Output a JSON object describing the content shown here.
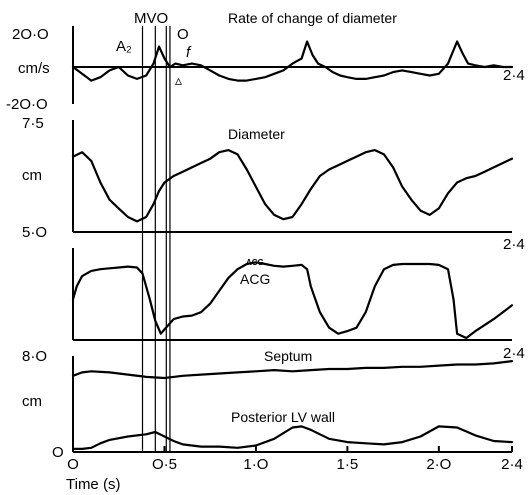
{
  "chart_data": {
    "type": "line",
    "x_axis": {
      "label": "Time (s)",
      "range": [
        0,
        2.4
      ],
      "ticks": [
        {
          "value": 0,
          "label": "O"
        },
        {
          "value": 0.5,
          "label": "O·5"
        },
        {
          "value": 1.0,
          "label": "1·O"
        },
        {
          "value": 1.5,
          "label": "1·5"
        },
        {
          "value": 2.0,
          "label": "2·O"
        },
        {
          "value": 2.4,
          "label": "2·4"
        }
      ],
      "panel_end_label": "2·4"
    },
    "markers": {
      "mvo_label": "MVO",
      "o_label": "O",
      "a2_label": "A₂",
      "f_label": "f",
      "triangle_label": "▵",
      "lines": [
        {
          "name": "a2",
          "x": 0.38
        },
        {
          "name": "mvo",
          "x": 0.45
        },
        {
          "name": "o",
          "x": 0.51
        },
        {
          "name": "f",
          "x": 0.53
        }
      ]
    },
    "panels": [
      {
        "id": "rate",
        "title": "Rate of change of diameter",
        "unit": "cm/s",
        "ylim": [
          -20,
          20
        ],
        "y_ticks": [
          {
            "value": 20,
            "label": "2O·O"
          },
          {
            "value": -20,
            "label": "-2O·O"
          }
        ],
        "baseline": 0,
        "series": {
          "x": [
            0,
            0.05,
            0.1,
            0.15,
            0.2,
            0.25,
            0.3,
            0.35,
            0.4,
            0.44,
            0.47,
            0.5,
            0.53,
            0.56,
            0.6,
            0.65,
            0.7,
            0.75,
            0.8,
            0.85,
            0.9,
            0.95,
            1.0,
            1.05,
            1.1,
            1.15,
            1.2,
            1.25,
            1.28,
            1.31,
            1.34,
            1.38,
            1.42,
            1.46,
            1.5,
            1.55,
            1.6,
            1.65,
            1.7,
            1.75,
            1.8,
            1.85,
            1.9,
            1.95,
            2.0,
            2.05,
            2.1,
            2.13,
            2.16,
            2.2,
            2.25,
            2.3,
            2.35,
            2.4
          ],
          "y": [
            0,
            -4,
            -8,
            -6,
            -2,
            0,
            -5,
            -7,
            -5,
            2,
            12,
            5,
            0,
            2,
            1,
            2,
            1,
            -2,
            -5,
            -7,
            -8,
            -8,
            -7,
            -6,
            -4,
            -2,
            2,
            5,
            15,
            7,
            2,
            0,
            -3,
            -5,
            -6,
            -7,
            -7,
            -6,
            -5,
            -3,
            -2,
            -3,
            -4,
            -5,
            -4,
            2,
            15,
            8,
            2,
            1,
            0,
            1,
            0,
            0
          ]
        }
      },
      {
        "id": "diameter",
        "title": "Diameter",
        "unit": "cm",
        "ylim": [
          5,
          7.5
        ],
        "y_ticks": [
          {
            "value": 7.5,
            "label": "7·5"
          },
          {
            "value": 5,
            "label": "5·O"
          }
        ],
        "series": {
          "x": [
            0,
            0.05,
            0.1,
            0.15,
            0.2,
            0.25,
            0.3,
            0.35,
            0.4,
            0.44,
            0.47,
            0.5,
            0.55,
            0.6,
            0.65,
            0.7,
            0.75,
            0.8,
            0.85,
            0.9,
            0.95,
            1.0,
            1.05,
            1.1,
            1.15,
            1.2,
            1.25,
            1.3,
            1.35,
            1.4,
            1.45,
            1.5,
            1.55,
            1.6,
            1.65,
            1.7,
            1.75,
            1.8,
            1.85,
            1.9,
            1.95,
            2.0,
            2.05,
            2.1,
            2.15,
            2.2,
            2.25,
            2.3,
            2.35,
            2.4
          ],
          "y": [
            6.7,
            6.8,
            6.6,
            6.1,
            5.7,
            5.5,
            5.3,
            5.2,
            5.3,
            5.6,
            5.9,
            6.1,
            6.25,
            6.35,
            6.45,
            6.55,
            6.65,
            6.8,
            6.85,
            6.75,
            6.4,
            6.0,
            5.6,
            5.35,
            5.25,
            5.3,
            5.6,
            5.95,
            6.25,
            6.4,
            6.5,
            6.6,
            6.7,
            6.8,
            6.85,
            6.75,
            6.45,
            6.0,
            5.7,
            5.45,
            5.35,
            5.5,
            5.85,
            6.1,
            6.2,
            6.25,
            6.35,
            6.45,
            6.55,
            6.65
          ]
        }
      },
      {
        "id": "acg",
        "title": "ACG",
        "title_small": "ACG",
        "ylim": [
          0,
          1
        ],
        "series": {
          "x": [
            0,
            0.02,
            0.05,
            0.1,
            0.15,
            0.2,
            0.25,
            0.3,
            0.35,
            0.38,
            0.42,
            0.45,
            0.48,
            0.5,
            0.55,
            0.6,
            0.65,
            0.7,
            0.75,
            0.8,
            0.85,
            0.9,
            0.95,
            1.0,
            1.05,
            1.1,
            1.15,
            1.2,
            1.25,
            1.28,
            1.3,
            1.35,
            1.4,
            1.45,
            1.5,
            1.55,
            1.6,
            1.65,
            1.7,
            1.75,
            1.8,
            1.85,
            1.9,
            1.95,
            2.0,
            2.05,
            2.08,
            2.1,
            2.15,
            2.2,
            2.25,
            2.3,
            2.35,
            2.4
          ],
          "y": [
            0.45,
            0.6,
            0.72,
            0.78,
            0.8,
            0.81,
            0.82,
            0.83,
            0.82,
            0.75,
            0.45,
            0.2,
            0.05,
            0.1,
            0.22,
            0.25,
            0.26,
            0.3,
            0.4,
            0.55,
            0.7,
            0.8,
            0.86,
            0.88,
            0.86,
            0.84,
            0.83,
            0.84,
            0.85,
            0.8,
            0.6,
            0.3,
            0.12,
            0.05,
            0.08,
            0.12,
            0.3,
            0.6,
            0.8,
            0.85,
            0.86,
            0.86,
            0.86,
            0.86,
            0.85,
            0.8,
            0.45,
            0.05,
            0.0,
            0.08,
            0.15,
            0.22,
            0.3,
            0.38
          ]
        }
      },
      {
        "id": "walls",
        "unit": "cm",
        "ylim": [
          0,
          8
        ],
        "y_ticks": [
          {
            "value": 8,
            "label": "8·O"
          },
          {
            "value": 0,
            "label": "O"
          }
        ],
        "series": [
          {
            "name": "Septum",
            "x": [
              0,
              0.05,
              0.1,
              0.2,
              0.3,
              0.4,
              0.5,
              0.6,
              0.7,
              0.8,
              0.9,
              1.0,
              1.1,
              1.2,
              1.3,
              1.4,
              1.5,
              1.6,
              1.7,
              1.8,
              1.9,
              2.0,
              2.1,
              2.2,
              2.3,
              2.4
            ],
            "y": [
              6.6,
              6.9,
              7.0,
              6.9,
              6.7,
              6.5,
              6.4,
              6.6,
              6.7,
              6.8,
              6.9,
              7.0,
              7.1,
              7.0,
              7.1,
              7.2,
              7.2,
              7.3,
              7.3,
              7.4,
              7.4,
              7.5,
              7.6,
              7.6,
              7.7,
              7.9
            ]
          },
          {
            "name": "Posterior LV wall",
            "x": [
              0,
              0.05,
              0.1,
              0.15,
              0.2,
              0.3,
              0.4,
              0.45,
              0.5,
              0.55,
              0.6,
              0.7,
              0.8,
              0.9,
              1.0,
              1.1,
              1.2,
              1.25,
              1.3,
              1.4,
              1.5,
              1.6,
              1.7,
              1.8,
              1.9,
              2.0,
              2.1,
              2.2,
              2.3,
              2.4
            ],
            "y": [
              0.1,
              0.1,
              0.2,
              0.6,
              0.9,
              1.2,
              1.4,
              1.6,
              1.2,
              0.8,
              0.5,
              0.3,
              0.3,
              0.2,
              0.4,
              1.0,
              2.0,
              2.1,
              1.8,
              1.0,
              0.7,
              0.6,
              0.5,
              0.7,
              1.2,
              2.1,
              2.0,
              1.3,
              0.8,
              0.7
            ]
          }
        ]
      }
    ]
  }
}
